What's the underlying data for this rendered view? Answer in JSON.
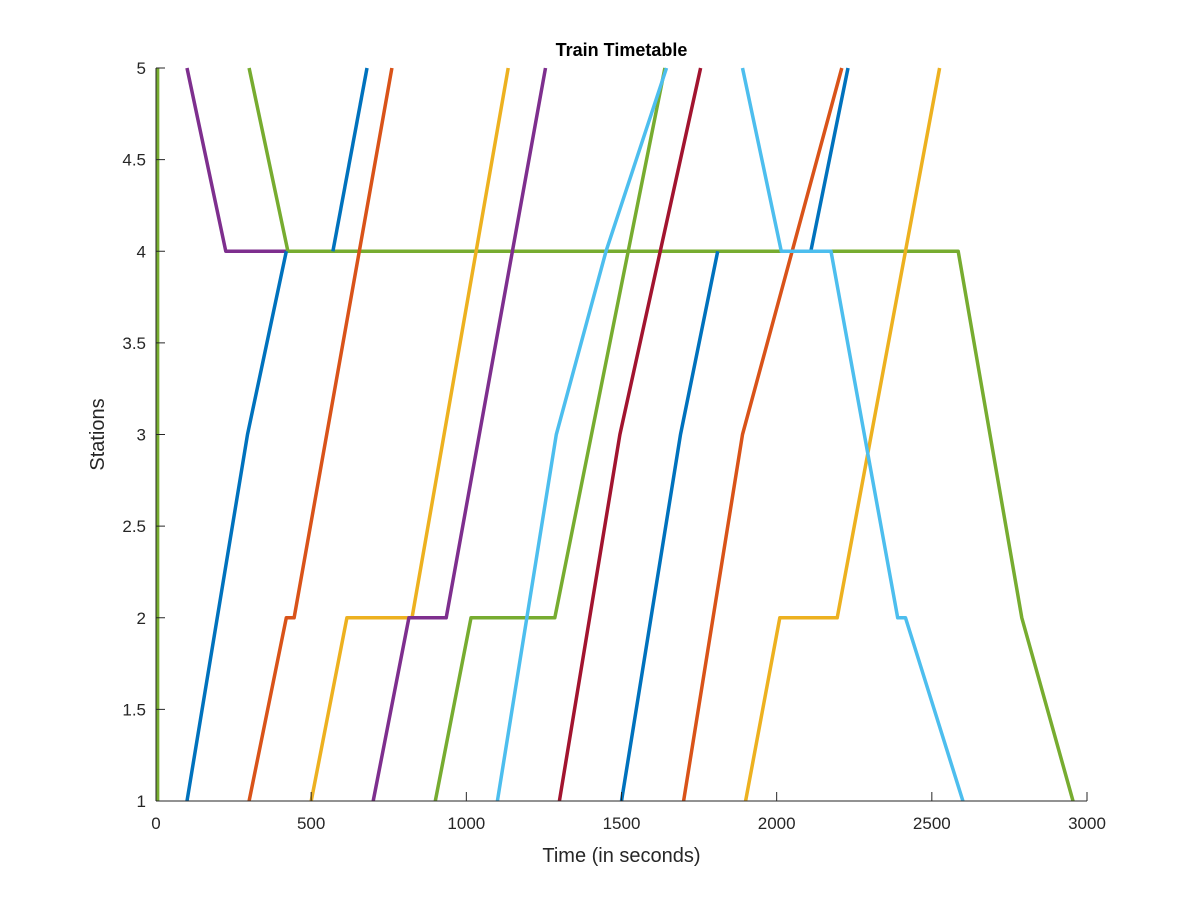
{
  "chart_data": {
    "type": "line",
    "title": "Train Timetable",
    "xlabel": "Time (in seconds)",
    "ylabel": "Stations",
    "xlim": [
      0,
      3000
    ],
    "ylim": [
      1,
      5
    ],
    "xticks": [
      0,
      500,
      1000,
      1500,
      2000,
      2500,
      3000
    ],
    "yticks": [
      1,
      1.5,
      2,
      2.5,
      3,
      3.5,
      4,
      4.5,
      5
    ],
    "xtick_labels": [
      "0",
      "500",
      "1000",
      "1500",
      "2000",
      "2500",
      "3000"
    ],
    "ytick_labels": [
      "1",
      "1.5",
      "2",
      "2.5",
      "3",
      "3.5",
      "4",
      "4.5",
      "5"
    ],
    "grid": false,
    "box": "left-bottom axes only",
    "series": [
      {
        "color": "#77AC30",
        "points": [
          [
            5,
            1
          ],
          [
            5,
            5
          ]
        ]
      },
      {
        "color": "#7E2F8E",
        "points": [
          [
            100,
            5
          ],
          [
            225,
            4
          ],
          [
            430,
            4
          ]
        ]
      },
      {
        "color": "#77AC30",
        "points": [
          [
            300,
            5
          ],
          [
            425,
            4
          ],
          [
            2585,
            4
          ],
          [
            2790,
            2
          ],
          [
            2955,
            1
          ]
        ]
      },
      {
        "color": "#0072BD",
        "points": [
          [
            100,
            1
          ],
          [
            295,
            3
          ],
          [
            420,
            4
          ]
        ]
      },
      {
        "color": "#0072BD",
        "points": [
          [
            570,
            4
          ],
          [
            680,
            5
          ]
        ]
      },
      {
        "color": "#D95319",
        "points": [
          [
            300,
            1
          ],
          [
            420,
            2
          ],
          [
            445,
            2
          ],
          [
            760,
            5
          ]
        ]
      },
      {
        "color": "#EDB120",
        "points": [
          [
            500,
            1
          ],
          [
            615,
            2
          ],
          [
            825,
            2
          ],
          [
            1135,
            5
          ]
        ]
      },
      {
        "color": "#7E2F8E",
        "points": [
          [
            700,
            1
          ],
          [
            815,
            2
          ],
          [
            935,
            2
          ],
          [
            1255,
            5
          ]
        ]
      },
      {
        "color": "#77AC30",
        "points": [
          [
            900,
            1
          ],
          [
            1015,
            2
          ],
          [
            1285,
            2
          ],
          [
            1640,
            5
          ]
        ]
      },
      {
        "color": "#4DBEEE",
        "points": [
          [
            1100,
            1
          ],
          [
            1290,
            3
          ],
          [
            1450,
            4
          ],
          [
            1645,
            5
          ]
        ]
      },
      {
        "color": "#A2142F",
        "points": [
          [
            1300,
            1
          ],
          [
            1495,
            3
          ],
          [
            1755,
            5
          ]
        ]
      },
      {
        "color": "#0072BD",
        "points": [
          [
            1500,
            1
          ],
          [
            1690,
            3
          ],
          [
            1810,
            4
          ]
        ]
      },
      {
        "color": "#0072BD",
        "points": [
          [
            2110,
            4
          ],
          [
            2230,
            5
          ]
        ]
      },
      {
        "color": "#D95319",
        "points": [
          [
            1700,
            1
          ],
          [
            1890,
            3
          ],
          [
            2210,
            5
          ]
        ]
      },
      {
        "color": "#EDB120",
        "points": [
          [
            1900,
            1
          ],
          [
            2010,
            2
          ],
          [
            2195,
            2
          ],
          [
            2525,
            5
          ]
        ]
      },
      {
        "color": "#4DBEEE",
        "points": [
          [
            1890,
            5
          ],
          [
            2015,
            4
          ],
          [
            2175,
            4
          ],
          [
            2390,
            2
          ],
          [
            2415,
            2
          ],
          [
            2600,
            1
          ]
        ]
      }
    ]
  }
}
